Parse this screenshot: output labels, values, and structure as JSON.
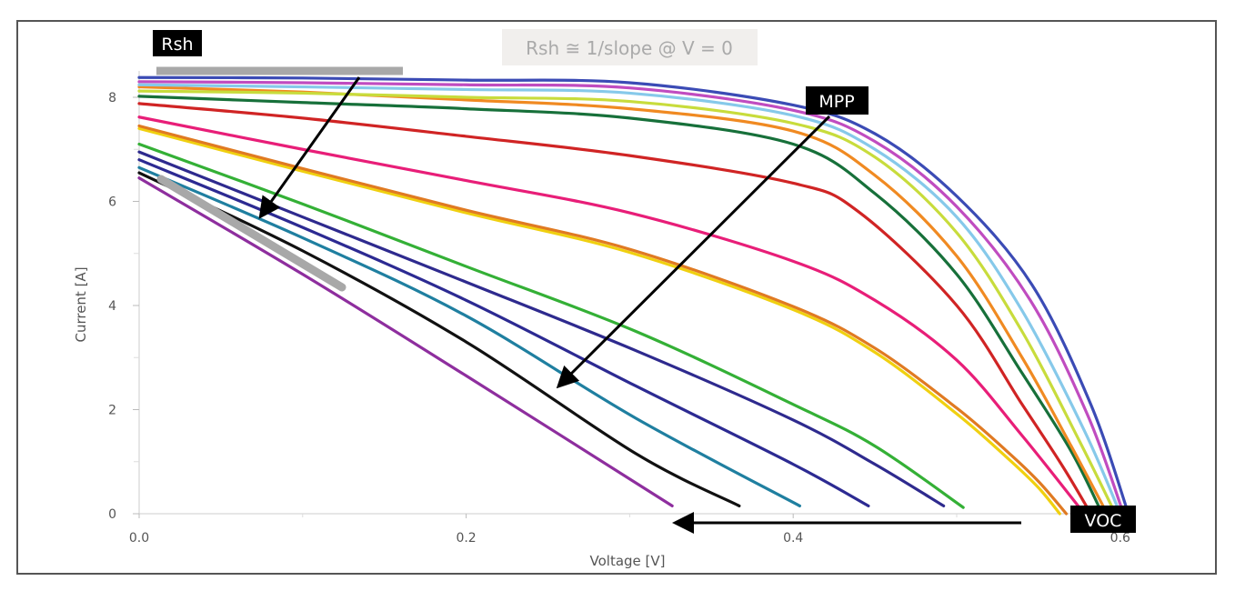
{
  "chart_data": {
    "type": "line",
    "title": "Rsh ≅ 1/slope @ V = 0",
    "xlabel": "Voltage [V]",
    "ylabel": "Current [A]",
    "xlim": [
      0,
      0.6
    ],
    "ylim": [
      0,
      8.5
    ],
    "xticks": [
      "0.0",
      "0.2",
      "0.4",
      "0.6"
    ],
    "xtick_values": [
      0,
      0.2,
      0.4,
      0.6
    ],
    "yticks": [
      "0",
      "2",
      "4",
      "6",
      "8"
    ],
    "ytick_values": [
      0,
      2,
      4,
      6,
      8
    ],
    "grid": false,
    "legend": "none",
    "annotations": {
      "rsh_label": "Rsh",
      "mpp_label": "MPP",
      "voc_label": "VOC"
    },
    "series": [
      {
        "color": "#3b4bb5",
        "points": [
          [
            0,
            8.38
          ],
          [
            0.1,
            8.37
          ],
          [
            0.2,
            8.33
          ],
          [
            0.3,
            8.28
          ],
          [
            0.4,
            7.85
          ],
          [
            0.45,
            7.3
          ],
          [
            0.5,
            6.1
          ],
          [
            0.546,
            4.4
          ],
          [
            0.582,
            2.1
          ],
          [
            0.605,
            0
          ]
        ]
      },
      {
        "color": "#c04cc0",
        "points": [
          [
            0,
            8.3
          ],
          [
            0.1,
            8.28
          ],
          [
            0.2,
            8.24
          ],
          [
            0.3,
            8.18
          ],
          [
            0.4,
            7.75
          ],
          [
            0.45,
            7.15
          ],
          [
            0.5,
            5.9
          ],
          [
            0.545,
            4.1
          ],
          [
            0.58,
            1.9
          ],
          [
            0.602,
            0
          ]
        ]
      },
      {
        "color": "#86c9ea",
        "points": [
          [
            0,
            8.24
          ],
          [
            0.1,
            8.2
          ],
          [
            0.2,
            8.15
          ],
          [
            0.3,
            8.08
          ],
          [
            0.4,
            7.65
          ],
          [
            0.45,
            7.0
          ],
          [
            0.5,
            5.7
          ],
          [
            0.54,
            3.9
          ],
          [
            0.578,
            1.6
          ],
          [
            0.6,
            0
          ]
        ]
      },
      {
        "color": "#c8dc3c",
        "points": [
          [
            0,
            8.12
          ],
          [
            0.1,
            8.08
          ],
          [
            0.2,
            8.0
          ],
          [
            0.3,
            7.92
          ],
          [
            0.4,
            7.5
          ],
          [
            0.45,
            6.85
          ],
          [
            0.5,
            5.4
          ],
          [
            0.54,
            3.5
          ],
          [
            0.575,
            1.4
          ],
          [
            0.597,
            0
          ]
        ]
      },
      {
        "color": "#f08a22",
        "points": [
          [
            0,
            8.2
          ],
          [
            0.1,
            8.1
          ],
          [
            0.2,
            7.95
          ],
          [
            0.3,
            7.78
          ],
          [
            0.4,
            7.35
          ],
          [
            0.45,
            6.5
          ],
          [
            0.5,
            4.95
          ],
          [
            0.54,
            3.0
          ],
          [
            0.57,
            1.3
          ],
          [
            0.592,
            0
          ]
        ]
      },
      {
        "color": "#17703a",
        "points": [
          [
            0,
            8.02
          ],
          [
            0.1,
            7.9
          ],
          [
            0.2,
            7.78
          ],
          [
            0.3,
            7.6
          ],
          [
            0.4,
            7.1
          ],
          [
            0.45,
            6.15
          ],
          [
            0.5,
            4.6
          ],
          [
            0.54,
            2.7
          ],
          [
            0.57,
            1.2
          ],
          [
            0.589,
            0
          ]
        ]
      },
      {
        "color": "#d02424",
        "points": [
          [
            0,
            7.88
          ],
          [
            0.1,
            7.6
          ],
          [
            0.2,
            7.25
          ],
          [
            0.3,
            6.88
          ],
          [
            0.4,
            6.35
          ],
          [
            0.44,
            5.8
          ],
          [
            0.5,
            4.0
          ],
          [
            0.54,
            2.1
          ],
          [
            0.565,
            0.9
          ],
          [
            0.582,
            0
          ]
        ]
      },
      {
        "color": "#e81e78",
        "points": [
          [
            0,
            7.62
          ],
          [
            0.1,
            7.0
          ],
          [
            0.2,
            6.4
          ],
          [
            0.3,
            5.78
          ],
          [
            0.4,
            4.85
          ],
          [
            0.45,
            4.1
          ],
          [
            0.5,
            2.95
          ],
          [
            0.54,
            1.5
          ],
          [
            0.578,
            0
          ]
        ]
      },
      {
        "color": "#e07a22",
        "points": [
          [
            0,
            7.45
          ],
          [
            0.1,
            6.63
          ],
          [
            0.2,
            5.83
          ],
          [
            0.3,
            5.08
          ],
          [
            0.4,
            3.98
          ],
          [
            0.45,
            3.18
          ],
          [
            0.5,
            2.03
          ],
          [
            0.53,
            1.22
          ],
          [
            0.55,
            0.62
          ],
          [
            0.567,
            0
          ]
        ]
      },
      {
        "color": "#f0d010",
        "points": [
          [
            0,
            7.4
          ],
          [
            0.1,
            6.58
          ],
          [
            0.2,
            5.78
          ],
          [
            0.3,
            5.02
          ],
          [
            0.4,
            3.92
          ],
          [
            0.45,
            3.1
          ],
          [
            0.5,
            1.92
          ],
          [
            0.53,
            1.1
          ],
          [
            0.55,
            0.5
          ],
          [
            0.563,
            0
          ]
        ]
      },
      {
        "color": "#34b036",
        "points": [
          [
            0,
            7.1
          ],
          [
            0.1,
            5.95
          ],
          [
            0.2,
            4.75
          ],
          [
            0.304,
            3.5
          ],
          [
            0.4,
            2.1
          ],
          [
            0.45,
            1.3
          ],
          [
            0.504,
            0.12
          ]
        ]
      },
      {
        "color": "#2e2a8e",
        "points": [
          [
            0,
            6.95
          ],
          [
            0.1,
            5.7
          ],
          [
            0.2,
            4.45
          ],
          [
            0.304,
            3.13
          ],
          [
            0.4,
            1.8
          ],
          [
            0.45,
            0.95
          ],
          [
            0.492,
            0.15
          ]
        ]
      },
      {
        "color": "#2c2a92",
        "points": [
          [
            0,
            6.8
          ],
          [
            0.1,
            5.5
          ],
          [
            0.2,
            4.1
          ],
          [
            0.304,
            2.45
          ],
          [
            0.4,
            0.95
          ],
          [
            0.446,
            0.15
          ]
        ]
      },
      {
        "color": "#1f7fa0",
        "points": [
          [
            0,
            6.65
          ],
          [
            0.1,
            5.3
          ],
          [
            0.2,
            3.8
          ],
          [
            0.304,
            1.83
          ],
          [
            0.404,
            0.15
          ]
        ]
      },
      {
        "color": "#111111",
        "points": [
          [
            0,
            6.55
          ],
          [
            0.1,
            5.05
          ],
          [
            0.2,
            3.3
          ],
          [
            0.304,
            1.15
          ],
          [
            0.367,
            0.15
          ]
        ]
      },
      {
        "color": "#8e2e9e",
        "points": [
          [
            0,
            6.45
          ],
          [
            0.1,
            4.6
          ],
          [
            0.2,
            2.65
          ],
          [
            0.326,
            0.15
          ]
        ]
      }
    ]
  }
}
